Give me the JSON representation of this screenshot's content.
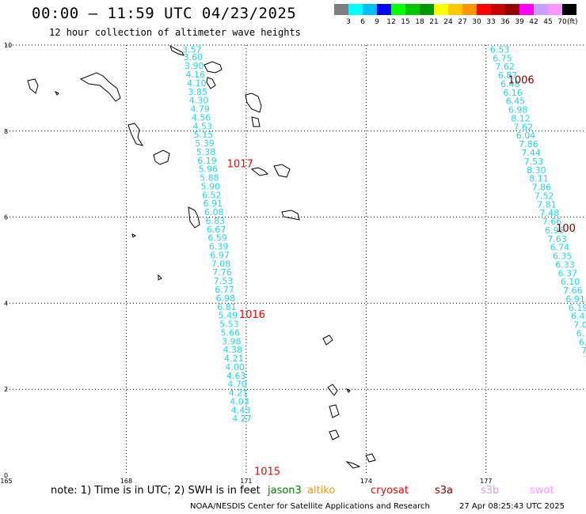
{
  "title": "00:00 – 11:59 UTC 04/23/2025",
  "subtitle": "12 hour collection of altimeter wave heights",
  "legend": {
    "colors": [
      "#7f7f7f",
      "#00ffff",
      "#00bfff",
      "#0000ff",
      "#00ff00",
      "#00c800",
      "#009600",
      "#ffff00",
      "#ffc800",
      "#ff9600",
      "#ff0000",
      "#c80000",
      "#960000",
      "#ff00ff",
      "#c8a0ff",
      "#ff96ff",
      "#000000"
    ],
    "labels": [
      "3",
      "6",
      "9",
      "12",
      "15",
      "18",
      "21",
      "24",
      "27",
      "30",
      "33",
      "36",
      "39",
      "42",
      "45",
      "70"
    ],
    "unit": "(ft)"
  },
  "axes": {
    "x_ticks": [
      "165",
      "168",
      "171",
      "174",
      "177"
    ],
    "y_ticks": [
      "0",
      "2",
      "4",
      "6",
      "8",
      "10"
    ]
  },
  "map_data": {
    "lon_range": [
      165,
      179.5
    ],
    "lat_range": [
      0,
      10
    ],
    "track1": [
      [
        "3.57",
        9.9
      ],
      [
        "3.60",
        9.72
      ],
      [
        "3.90",
        9.52
      ],
      [
        "4.16",
        9.32
      ],
      [
        "4.10",
        9.12
      ],
      [
        "3.85",
        8.92
      ],
      [
        "4.30",
        8.72
      ],
      [
        "4.79",
        8.52
      ],
      [
        "4.56",
        8.32
      ],
      [
        "4.53",
        8.12
      ],
      [
        "5.15",
        7.92
      ],
      [
        "5.39",
        7.72
      ],
      [
        "5.38",
        7.52
      ],
      [
        "6.19",
        7.32
      ],
      [
        "5.96",
        7.12
      ],
      [
        "5.88",
        6.92
      ],
      [
        "5.90",
        6.72
      ],
      [
        "6.52",
        6.52
      ],
      [
        "6.91",
        6.32
      ],
      [
        "6.08",
        6.12
      ],
      [
        "6.83",
        5.92
      ],
      [
        "6.67",
        5.72
      ],
      [
        "6.59",
        5.52
      ],
      [
        "6.39",
        5.32
      ],
      [
        "6.97",
        5.12
      ],
      [
        "7.08",
        4.92
      ],
      [
        "7.76",
        4.72
      ],
      [
        "7.53",
        4.52
      ],
      [
        "6.77",
        4.32
      ],
      [
        "6.98",
        4.12
      ],
      [
        "6.81",
        3.92
      ],
      [
        "5.49",
        3.72
      ],
      [
        "5.53",
        3.52
      ],
      [
        "5.66",
        3.32
      ],
      [
        "3.98",
        3.12
      ],
      [
        "4.38",
        2.92
      ],
      [
        "4.21",
        2.72
      ],
      [
        "4.00",
        2.52
      ],
      [
        "4.63",
        2.32
      ],
      [
        "4.70",
        2.12
      ],
      [
        "4.21",
        1.92
      ],
      [
        "4.03",
        1.72
      ],
      [
        "4.43",
        1.52
      ],
      [
        "4.27",
        1.32
      ]
    ],
    "track2": [
      [
        "6.53",
        9.9
      ],
      [
        "6.75",
        9.7
      ],
      [
        "7.62",
        9.5
      ],
      [
        "6.87",
        9.3
      ],
      [
        "6.48",
        9.1
      ],
      [
        "6.16",
        8.9
      ],
      [
        "6.45",
        8.7
      ],
      [
        "6.98",
        8.5
      ],
      [
        "8.12",
        8.3
      ],
      [
        "7.62",
        8.1
      ],
      [
        "6.04",
        7.9
      ],
      [
        "7.86",
        7.7
      ],
      [
        "7.44",
        7.5
      ],
      [
        "7.53",
        7.3
      ],
      [
        "8.30",
        7.1
      ],
      [
        "8.11",
        6.9
      ],
      [
        "7.86",
        6.7
      ],
      [
        "7.52",
        6.5
      ],
      [
        "7.81",
        6.3
      ],
      [
        "7.48",
        6.1
      ],
      [
        "7.66",
        5.9
      ],
      [
        "6.96",
        5.7
      ],
      [
        "7.63",
        5.5
      ],
      [
        "6.74",
        5.3
      ],
      [
        "6.35",
        5.1
      ],
      [
        "6.33",
        4.9
      ],
      [
        "6.37",
        4.7
      ],
      [
        "6.10",
        4.5
      ],
      [
        "7.66",
        4.3
      ],
      [
        "6.91",
        4.1
      ],
      [
        "6.19",
        3.9
      ],
      [
        "6.4",
        3.7
      ],
      [
        "7.0",
        3.5
      ],
      [
        "6.",
        3.3
      ],
      [
        "6.",
        3.1
      ],
      [
        "7.",
        2.9
      ],
      [
        "7",
        2.7
      ]
    ],
    "pressure_labels": [
      {
        "text": "1006",
        "lon": 177.55,
        "lat": 9.2,
        "color": "#800000"
      },
      {
        "text": "1017",
        "lon": 170.52,
        "lat": 7.25,
        "color": "#ff0000"
      },
      {
        "text": "100",
        "lon": 178.75,
        "lat": 5.75,
        "color": "#800000"
      },
      {
        "text": "1016",
        "lon": 170.82,
        "lat": 3.75,
        "color": "#ff0000"
      },
      {
        "text": "1015",
        "lon": 171.2,
        "lat": 0.1,
        "color": "#ff0000"
      }
    ]
  },
  "notes": {
    "main": "note:  1) Time is in UTC; 2) SWH is in feet",
    "sats": [
      {
        "name": "jason3",
        "color": "#008000"
      },
      {
        "name": "altiko",
        "color": "#ff9600"
      },
      {
        "name": "cryosat",
        "color": "#ff0000"
      },
      {
        "name": "s3a",
        "color": "#8b0000"
      },
      {
        "name": "s3b",
        "color": "#c8a0ff"
      },
      {
        "name": "swot",
        "color": "#ff96ff"
      }
    ]
  },
  "footer": {
    "credit": "NOAA/NESDIS Center for Satellite Applications and Research",
    "timestamp": "27 Apr 08:25:43 UTC 2025"
  }
}
